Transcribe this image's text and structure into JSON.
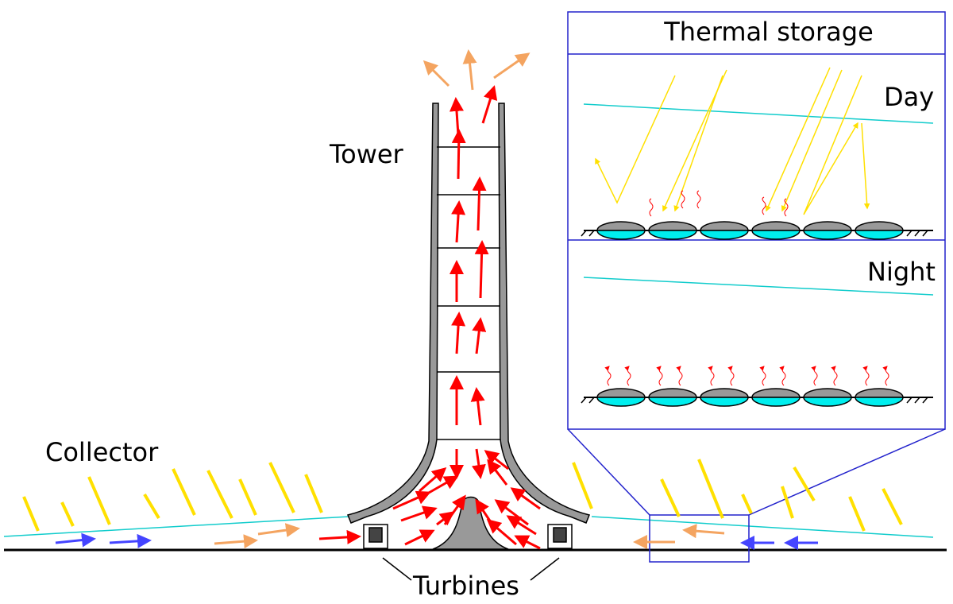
{
  "labels": {
    "tower": "Tower",
    "collector": "Collector",
    "turbines": "Turbines"
  },
  "inset": {
    "title": "Thermal storage",
    "day": "Day",
    "night": "Night"
  }
}
